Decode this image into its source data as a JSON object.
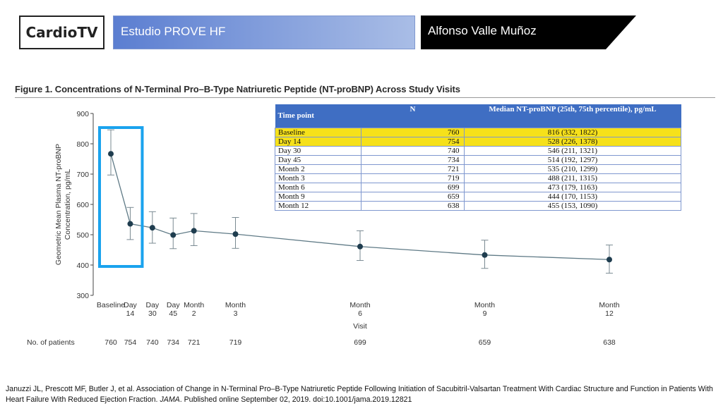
{
  "header": {
    "logo": "CardioTV",
    "title": "Estudio PROVE HF",
    "author": "Alfonso Valle Muñoz"
  },
  "figure_title": "Figure 1. Concentrations of N-Terminal Pro–B-Type Natriuretic Peptide (NT-proBNP) Across Study Visits",
  "table": {
    "headers": [
      "Time point",
      "N",
      "Median NT-proBNP (25th, 75th percentile), pg/mL"
    ],
    "rows": [
      {
        "time": "Baseline",
        "n": "760",
        "median": "816 (332, 1822)",
        "highlight": true
      },
      {
        "time": "Day 14",
        "n": "754",
        "median": "528 (226, 1378)",
        "highlight": true
      },
      {
        "time": "Day 30",
        "n": "740",
        "median": "546 (211, 1321)",
        "highlight": false
      },
      {
        "time": "Day 45",
        "n": "734",
        "median": "514 (192, 1297)",
        "highlight": false
      },
      {
        "time": "Month 2",
        "n": "721",
        "median": "535 (210, 1299)",
        "highlight": false
      },
      {
        "time": "Month 3",
        "n": "719",
        "median": "488 (211, 1315)",
        "highlight": false
      },
      {
        "time": "Month 6",
        "n": "699",
        "median": "473 (179, 1163)",
        "highlight": false
      },
      {
        "time": "Month 9",
        "n": "659",
        "median": "444 (170, 1153)",
        "highlight": false
      },
      {
        "time": "Month 12",
        "n": "638",
        "median": "455 (153, 1090)",
        "highlight": false
      }
    ]
  },
  "chart_data": {
    "type": "line",
    "title": "",
    "xlabel": "Visit",
    "ylabel": "Geometric Mean Plasma NT-proBNP Concentration, pg/mL",
    "ylim": [
      300,
      900
    ],
    "yticks": [
      300,
      400,
      500,
      600,
      700,
      800,
      900
    ],
    "categories": [
      "Baseline",
      "Day 14",
      "Day 30",
      "Day 45",
      "Month 2",
      "Month 3",
      "Month 6",
      "Month 9",
      "Month 12"
    ],
    "x_days": [
      0,
      14,
      30,
      45,
      60,
      90,
      180,
      270,
      360
    ],
    "values": [
      767,
      536,
      523,
      499,
      513,
      502,
      461,
      433,
      418
    ],
    "error_low": [
      697,
      484,
      472,
      454,
      464,
      455,
      415,
      389,
      373
    ],
    "error_high": [
      846,
      590,
      576,
      555,
      570,
      557,
      513,
      482,
      466
    ],
    "patients_label": "No. of patients",
    "patients": [
      "760",
      "754",
      "740",
      "734",
      "721",
      "719",
      "699",
      "659",
      "638"
    ],
    "highlight_box_categories": [
      "Baseline",
      "Day 14"
    ],
    "colors": {
      "line": "#5f7a86",
      "point": "#1f3d4f",
      "highlight_box": "#1aa3ee"
    },
    "grid": false
  },
  "citation": {
    "text_before": "Januzzi JL, Prescott MF, Butler J, et al. Association of Change in N-Terminal Pro–B-Type Natriuretic Peptide Following Initiation of Sacubitril-Valsartan Treatment With Cardiac Structure and Function in Patients With Heart Failure With Reduced Ejection Fraction. ",
    "journal": "JAMA",
    "text_after": ". Published online September 02, 2019. doi:10.1001/jama.2019.12821"
  }
}
